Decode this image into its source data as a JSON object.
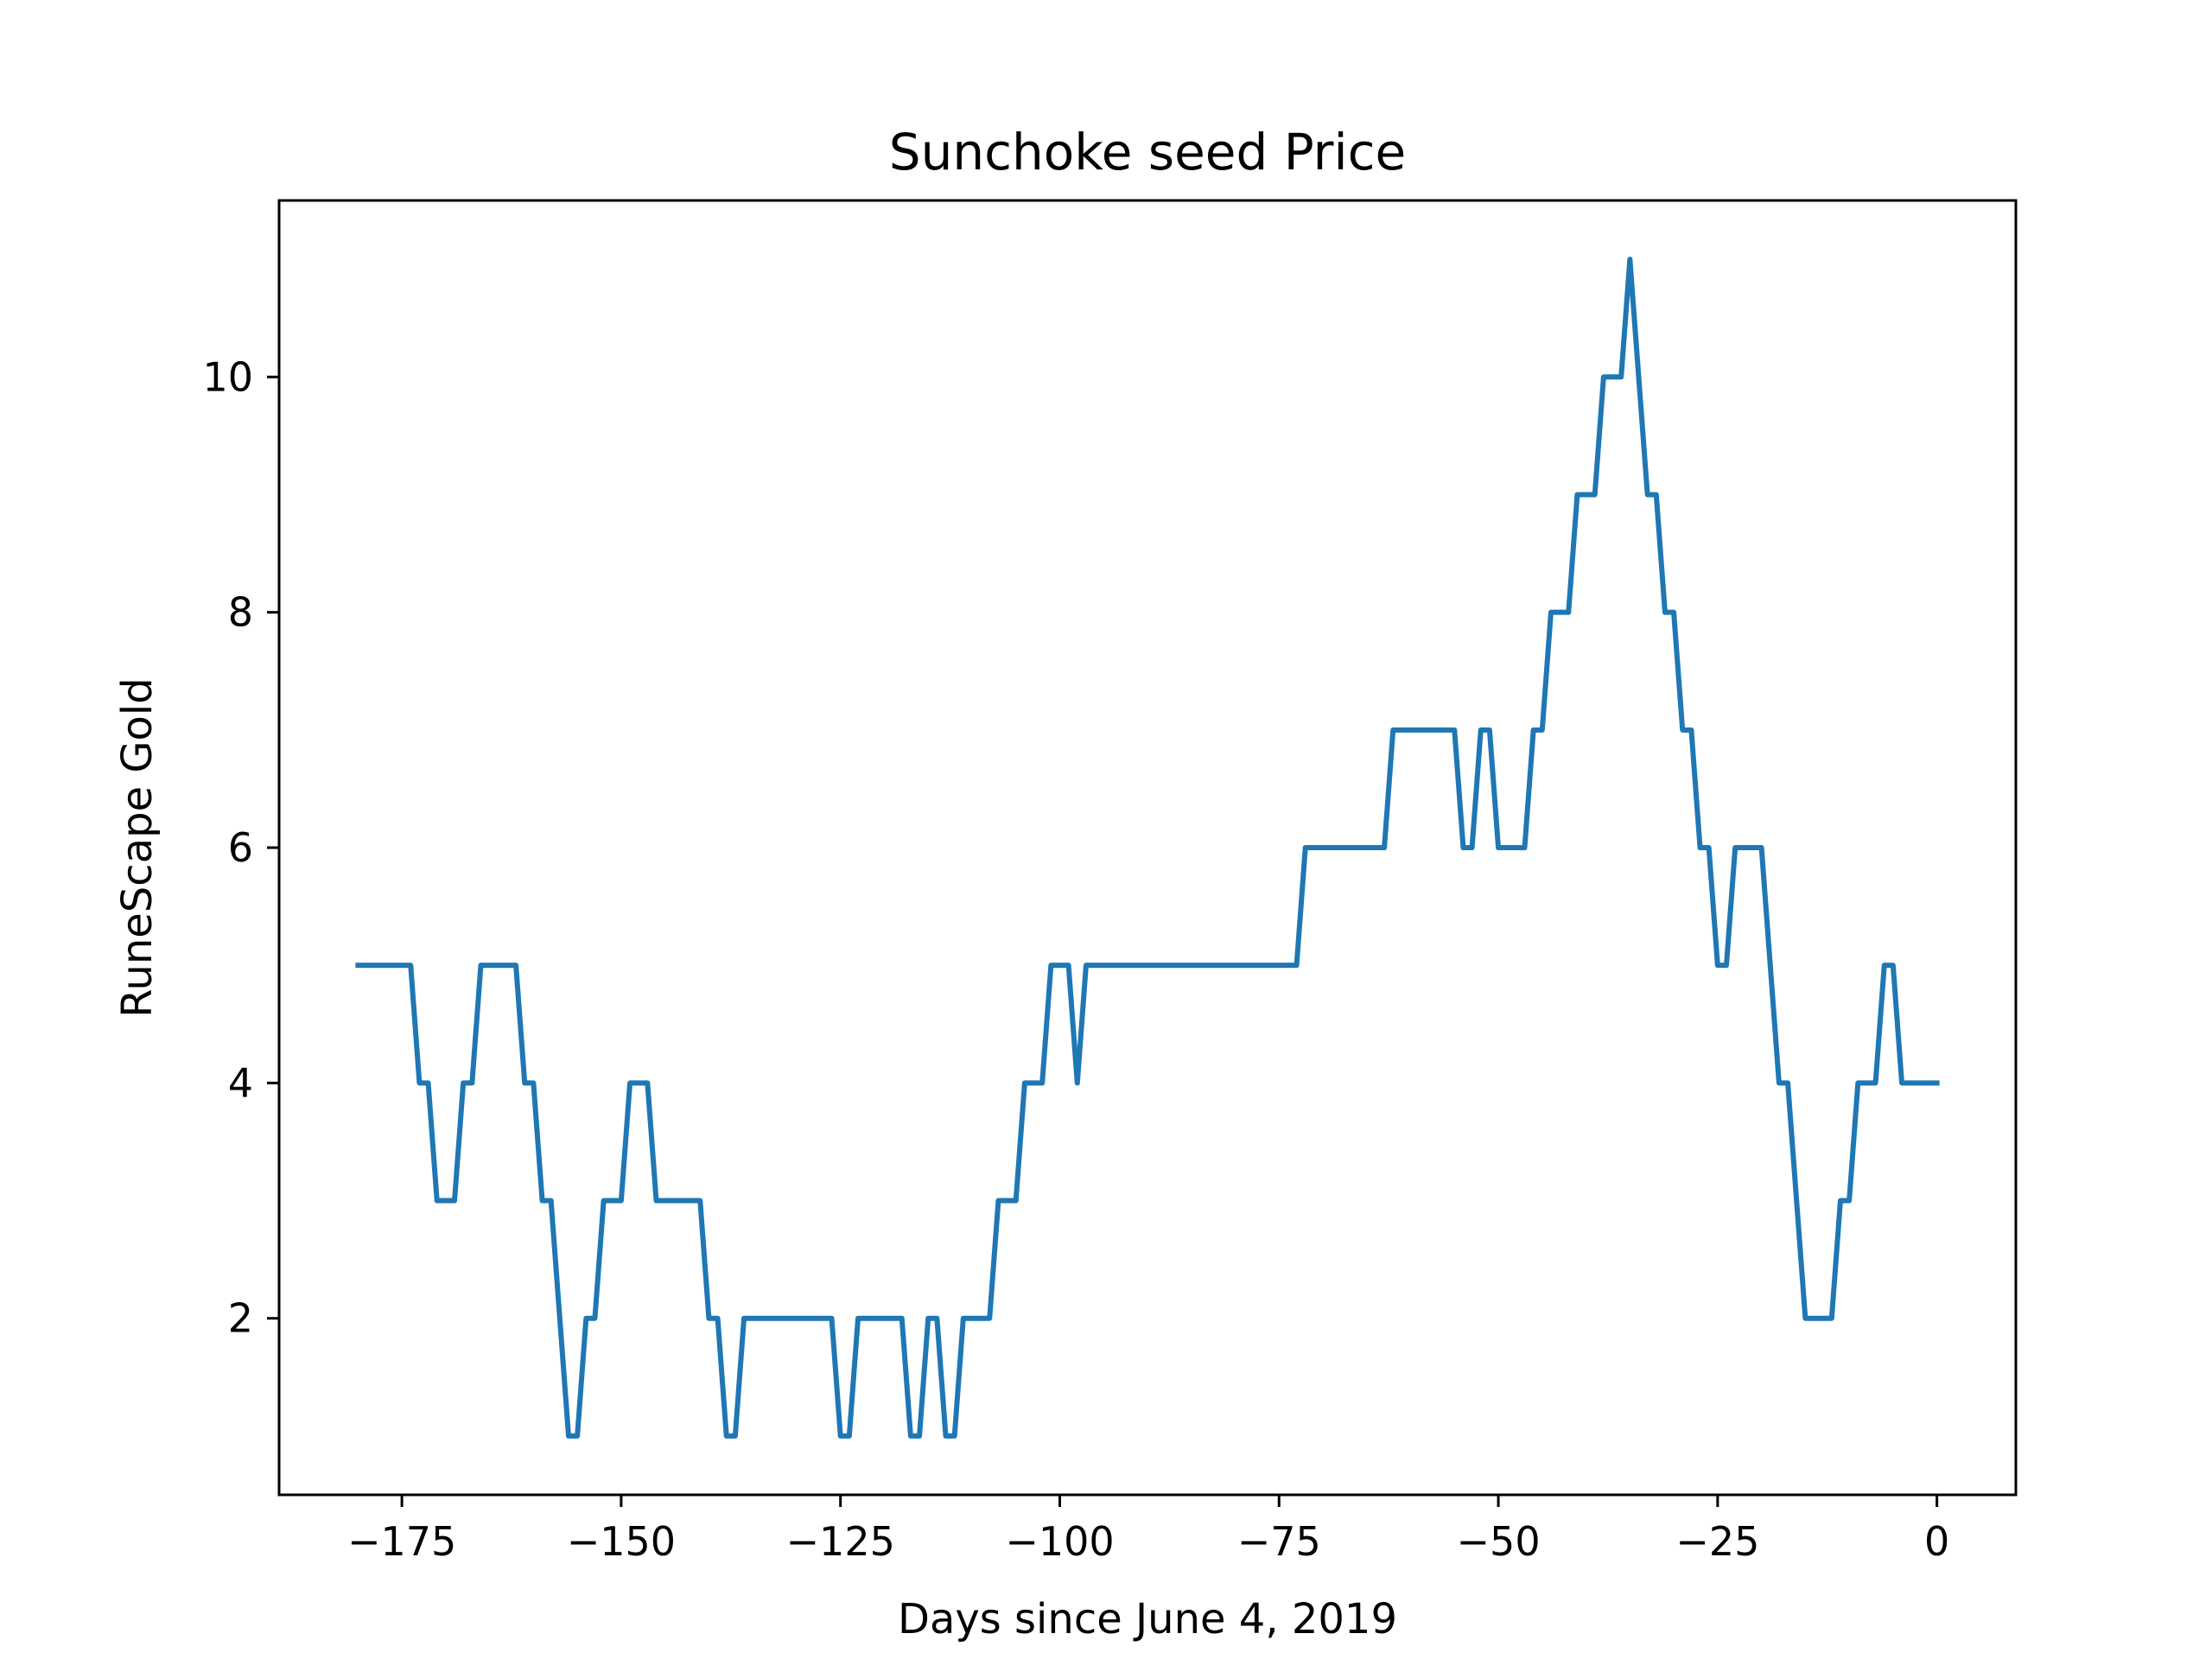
{
  "chart_data": {
    "type": "line",
    "title": "Sunchoke seed Price",
    "xlabel": "Days since June 4, 2019",
    "ylabel": "RuneScape Gold",
    "xlim": [
      -189,
      9
    ],
    "ylim": [
      0.5,
      11.5
    ],
    "xticks": [
      -175,
      -150,
      -125,
      -100,
      -75,
      -50,
      -25,
      0
    ],
    "xtick_labels": [
      "−175",
      "−150",
      "−125",
      "−100",
      "−75",
      "−50",
      "−25",
      "0"
    ],
    "yticks": [
      2,
      4,
      6,
      8,
      10
    ],
    "ytick_labels": [
      "2",
      "4",
      "6",
      "8",
      "10"
    ],
    "grid": false,
    "series": [
      {
        "color": "#1f77b4",
        "x": [
          -180,
          -179,
          -178,
          -177,
          -176,
          -175,
          -174,
          -173,
          -172,
          -171,
          -170,
          -169,
          -168,
          -167,
          -166,
          -165,
          -164,
          -163,
          -162,
          -161,
          -160,
          -159,
          -158,
          -157,
          -156,
          -155,
          -154,
          -153,
          -152,
          -151,
          -150,
          -149,
          -148,
          -147,
          -146,
          -145,
          -144,
          -143,
          -142,
          -141,
          -140,
          -139,
          -138,
          -137,
          -136,
          -135,
          -134,
          -133,
          -132,
          -131,
          -130,
          -129,
          -128,
          -127,
          -126,
          -125,
          -124,
          -123,
          -122,
          -121,
          -120,
          -119,
          -118,
          -117,
          -116,
          -115,
          -114,
          -113,
          -112,
          -111,
          -110,
          -109,
          -108,
          -107,
          -106,
          -105,
          -104,
          -103,
          -102,
          -101,
          -100,
          -99,
          -98,
          -97,
          -96,
          -95,
          -94,
          -93,
          -92,
          -91,
          -90,
          -89,
          -88,
          -87,
          -86,
          -85,
          -84,
          -83,
          -82,
          -81,
          -80,
          -79,
          -78,
          -77,
          -76,
          -75,
          -74,
          -73,
          -72,
          -71,
          -70,
          -69,
          -68,
          -67,
          -66,
          -65,
          -64,
          -63,
          -62,
          -61,
          -60,
          -59,
          -58,
          -57,
          -56,
          -55,
          -54,
          -53,
          -52,
          -51,
          -50,
          -49,
          -48,
          -47,
          -46,
          -45,
          -44,
          -43,
          -42,
          -41,
          -40,
          -39,
          -38,
          -37,
          -36,
          -35,
          -34,
          -33,
          -32,
          -31,
          -30,
          -29,
          -28,
          -27,
          -26,
          -25,
          -24,
          -23,
          -22,
          -21,
          -20,
          -19,
          -18,
          -17,
          -16,
          -15,
          -14,
          -13,
          -12,
          -11,
          -10,
          -9,
          -8,
          -7,
          -6,
          -5,
          -4,
          -3,
          -2,
          -1,
          0
        ],
        "y": [
          5,
          5,
          5,
          5,
          5,
          5,
          5,
          4,
          4,
          3,
          3,
          3,
          4,
          4,
          5,
          5,
          5,
          5,
          5,
          4,
          4,
          3,
          3,
          2,
          1,
          1,
          2,
          2,
          3,
          3,
          3,
          4,
          4,
          4,
          3,
          3,
          3,
          3,
          3,
          3,
          2,
          2,
          1,
          1,
          2,
          2,
          2,
          2,
          2,
          2,
          2,
          2,
          2,
          2,
          2,
          1,
          1,
          2,
          2,
          2,
          2,
          2,
          2,
          1,
          1,
          2,
          2,
          1,
          1,
          2,
          2,
          2,
          2,
          3,
          3,
          3,
          4,
          4,
          4,
          5,
          5,
          5,
          4,
          5,
          5,
          5,
          5,
          5,
          5,
          5,
          5,
          5,
          5,
          5,
          5,
          5,
          5,
          5,
          5,
          5,
          5,
          5,
          5,
          5,
          5,
          5,
          5,
          5,
          6,
          6,
          6,
          6,
          6,
          6,
          6,
          6,
          6,
          6,
          7,
          7,
          7,
          7,
          7,
          7,
          7,
          7,
          6,
          6,
          7,
          7,
          6,
          6,
          6,
          6,
          7,
          7,
          8,
          8,
          8,
          9,
          9,
          9,
          10,
          10,
          10,
          11,
          10,
          9,
          9,
          8,
          8,
          7,
          7,
          6,
          6,
          5,
          5,
          6,
          6,
          6,
          6,
          5,
          4,
          4,
          3,
          2,
          2,
          2,
          2,
          3,
          3,
          4,
          4,
          4,
          5,
          5,
          4,
          4,
          4,
          4,
          4
        ]
      }
    ]
  }
}
